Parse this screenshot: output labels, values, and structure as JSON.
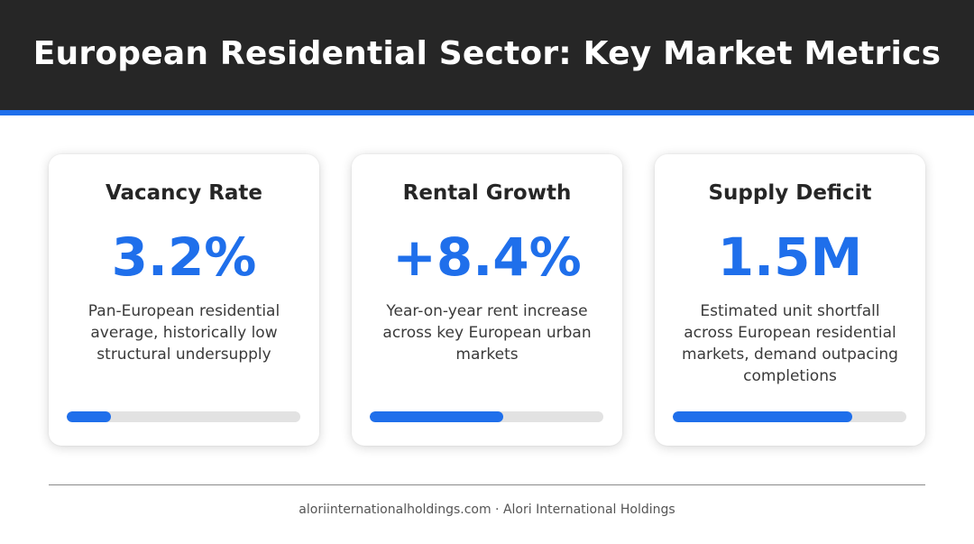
{
  "header": {
    "title": "European Residential Sector: Key Market Metrics"
  },
  "cards": [
    {
      "title": "Vacancy Rate",
      "value": "3.2%",
      "description": "Pan-European residential average, historically low structural undersupply",
      "progress_percent": 19
    },
    {
      "title": "Rental Growth",
      "value": "+8.4%",
      "description": "Year-on-year rent increase across key European urban markets",
      "progress_percent": 57
    },
    {
      "title": "Supply Deficit",
      "value": "1.5M",
      "description": "Estimated unit shortfall across European residential markets, demand outpacing completions",
      "progress_percent": 77
    }
  ],
  "footer": {
    "text": "aloriinternationalholdings.com · Alori International Holdings"
  },
  "colors": {
    "header_background": "#262626",
    "accent": "#1f6feb",
    "track": "#e2e2e2"
  }
}
